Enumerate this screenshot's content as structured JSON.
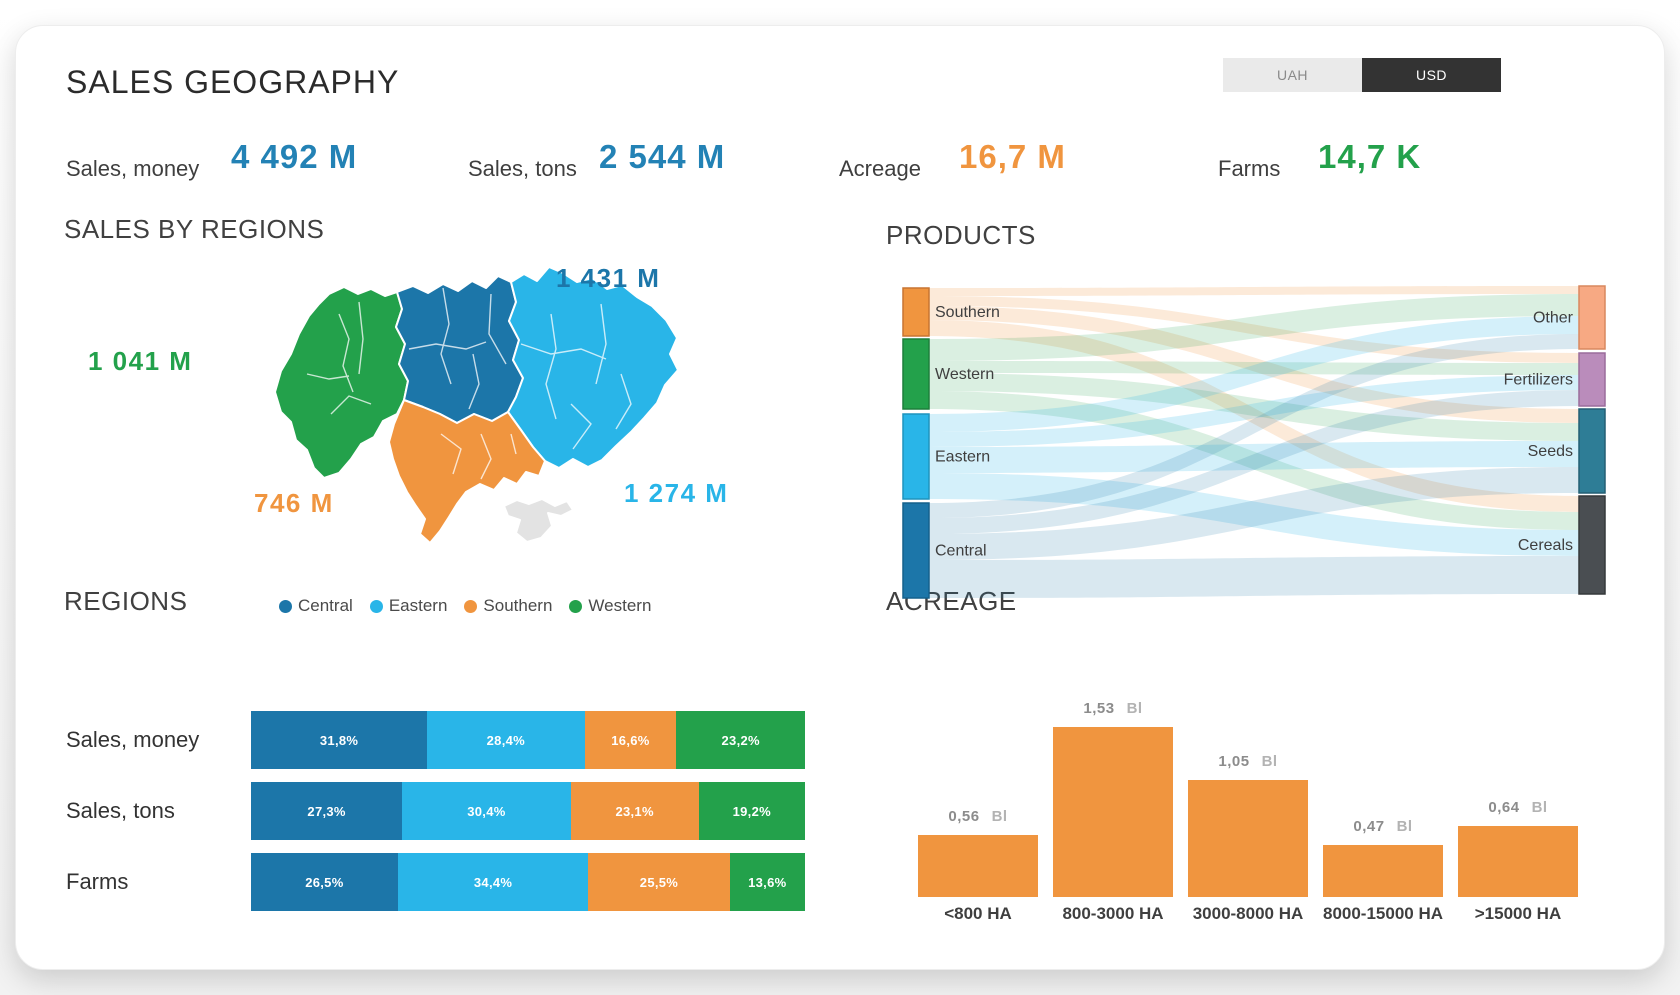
{
  "page": {
    "title": "SALES GEOGRAPHY"
  },
  "currency_toggle": {
    "options": [
      {
        "label": "UAH",
        "active": false
      },
      {
        "label": "USD",
        "active": true
      }
    ]
  },
  "kpis": [
    {
      "label": "Sales, money",
      "value": "4 492 M",
      "color": "#2382B5"
    },
    {
      "label": "Sales, tons",
      "value": "2 544 M",
      "color": "#2382B5"
    },
    {
      "label": "Acreage",
      "value": "16,7 M",
      "color": "#F0953F"
    },
    {
      "label": "Farms",
      "value": "14,7 K",
      "color": "#23A14B"
    }
  ],
  "region_colors": {
    "Central": "#1C76A9",
    "Eastern": "#29B5E8",
    "Southern": "#F0953F",
    "Western": "#23A14B",
    "Crimea": "#E3E3E3"
  },
  "chart_data": [
    {
      "id": "sales_by_regions_map",
      "type": "choropleth",
      "title": "SALES BY REGIONS",
      "unit": "M",
      "regions": [
        {
          "name": "Central",
          "value": 1431,
          "value_label": "1 431 M",
          "color": "#1C76A9"
        },
        {
          "name": "Western",
          "value": 1041,
          "value_label": "1 041 M",
          "color": "#23A14B"
        },
        {
          "name": "Southern",
          "value": 746,
          "value_label": "746 M",
          "color": "#F0953F"
        },
        {
          "name": "Eastern",
          "value": 1274,
          "value_label": "1 274 M",
          "color": "#29B5E8"
        }
      ]
    },
    {
      "id": "products_sankey",
      "type": "sankey",
      "title": "PRODUCTS",
      "sources": [
        {
          "name": "Southern",
          "color": "#F0953F",
          "border": "#C77430",
          "ribbon": "rgba(240,149,63,0.20)"
        },
        {
          "name": "Western",
          "color": "#23A14B",
          "border": "#1C7F3B",
          "ribbon": "rgba(35,161,75,0.17)"
        },
        {
          "name": "Eastern",
          "color": "#29B5E8",
          "border": "#1F93BD",
          "ribbon": "rgba(41,181,232,0.20)"
        },
        {
          "name": "Central",
          "color": "#1C76A9",
          "border": "#15618C",
          "ribbon": "rgba(28,118,169,0.17)"
        }
      ],
      "targets": [
        {
          "name": "Other",
          "color": "#F7A983",
          "border": "#D9885F"
        },
        {
          "name": "Fertilizers",
          "color": "#BA8CBB",
          "border": "#9A6C9B"
        },
        {
          "name": "Seeds",
          "color": "#2E7D96",
          "border": "#235F73"
        },
        {
          "name": "Cereals",
          "color": "#4A4E52",
          "border": "#35383B"
        }
      ],
      "links": [
        {
          "source": "Southern",
          "target": "Other",
          "weight": 8
        },
        {
          "source": "Southern",
          "target": "Fertilizers",
          "weight": 10
        },
        {
          "source": "Southern",
          "target": "Seeds",
          "weight": 14
        },
        {
          "source": "Southern",
          "target": "Cereals",
          "weight": 16
        },
        {
          "source": "Western",
          "target": "Other",
          "weight": 22
        },
        {
          "source": "Western",
          "target": "Fertilizers",
          "weight": 12
        },
        {
          "source": "Western",
          "target": "Seeds",
          "weight": 18
        },
        {
          "source": "Western",
          "target": "Cereals",
          "weight": 18
        },
        {
          "source": "Eastern",
          "target": "Other",
          "weight": 18
        },
        {
          "source": "Eastern",
          "target": "Fertilizers",
          "weight": 15
        },
        {
          "source": "Eastern",
          "target": "Seeds",
          "weight": 26
        },
        {
          "source": "Eastern",
          "target": "Cereals",
          "weight": 26
        },
        {
          "source": "Central",
          "target": "Other",
          "weight": 15
        },
        {
          "source": "Central",
          "target": "Fertilizers",
          "weight": 16
        },
        {
          "source": "Central",
          "target": "Seeds",
          "weight": 26
        },
        {
          "source": "Central",
          "target": "Cereals",
          "weight": 38
        }
      ]
    },
    {
      "id": "regions_stacked",
      "type": "bar",
      "subtype": "stacked-horizontal-100",
      "title": "REGIONS",
      "legend": [
        "Central",
        "Eastern",
        "Southern",
        "Western"
      ],
      "rows": [
        {
          "label": "Sales, money",
          "values": [
            31.8,
            28.4,
            16.6,
            23.2
          ],
          "labels": [
            "31,8%",
            "28,4%",
            "16,6%",
            "23,2%"
          ]
        },
        {
          "label": "Sales, tons",
          "values": [
            27.3,
            30.4,
            23.1,
            19.2
          ],
          "labels": [
            "27,3%",
            "30,4%",
            "23,1%",
            "19,2%"
          ]
        },
        {
          "label": "Farms",
          "values": [
            26.5,
            34.4,
            25.5,
            13.6
          ],
          "labels": [
            "26,5%",
            "34,4%",
            "25,5%",
            "13,6%"
          ]
        }
      ]
    },
    {
      "id": "acreage_bars",
      "type": "bar",
      "title": "ACREAGE",
      "categories": [
        "<800 HA",
        "800-3000 HA",
        "3000-8000 HA",
        "8000-15000 HA",
        ">15000 HA"
      ],
      "values": [
        0.56,
        1.53,
        1.05,
        0.47,
        0.64
      ],
      "value_labels": [
        "0,56",
        "1,53",
        "1,05",
        "0,47",
        "0,64"
      ],
      "unit": "Bl",
      "color": "#F0953F",
      "ylim": [
        0,
        1.53
      ]
    }
  ]
}
